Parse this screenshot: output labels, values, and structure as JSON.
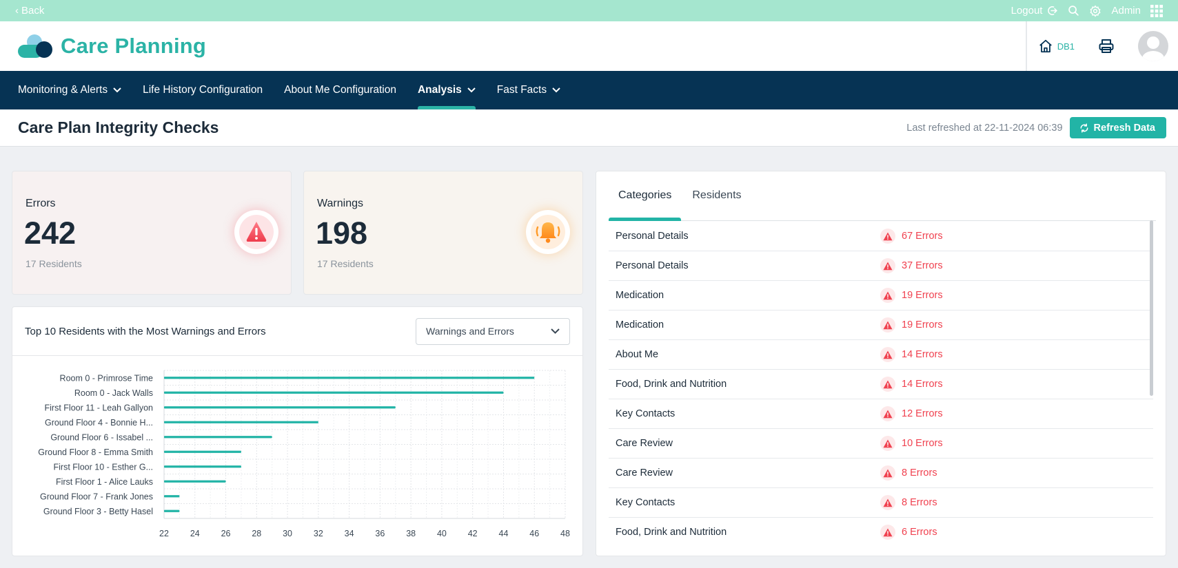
{
  "topbar": {
    "back": "Back",
    "logout": "Logout",
    "admin": "Admin"
  },
  "header": {
    "brand": "Care Planning",
    "db_label": "DB1"
  },
  "nav": {
    "items": [
      {
        "label": "Monitoring & Alerts",
        "dropdown": true
      },
      {
        "label": "Life History Configuration",
        "dropdown": false
      },
      {
        "label": "About Me Configuration",
        "dropdown": false
      },
      {
        "label": "Analysis",
        "dropdown": true,
        "active": true
      },
      {
        "label": "Fast Facts",
        "dropdown": true
      }
    ]
  },
  "page": {
    "title": "Care Plan Integrity Checks",
    "last_refreshed": "Last refreshed at 22-11-2024 06:39",
    "refresh_button": "Refresh Data"
  },
  "stats": {
    "errors": {
      "label": "Errors",
      "value": "242",
      "sub": "17 Residents"
    },
    "warnings": {
      "label": "Warnings",
      "value": "198",
      "sub": "17 Residents"
    }
  },
  "chart_panel": {
    "title": "Top 10 Residents with the Most Warnings and Errors",
    "filter_selected": "Warnings and Errors"
  },
  "chart_data": {
    "type": "bar",
    "orientation": "horizontal",
    "categories": [
      "Room 0 - Primrose Time",
      "Room 0 - Jack Walls",
      "First Floor 11 - Leah Gallyon",
      "Ground Floor 4 - Bonnie H...",
      "Ground Floor 6 - Issabel ...",
      "Ground Floor 8 - Emma Smith",
      "First Floor 10 - Esther G...",
      "First Floor 1 - Alice Lauks",
      "Ground Floor 7 - Frank Jones",
      "Ground Floor 3 - Betty Hasel"
    ],
    "values": [
      46,
      44,
      37,
      32,
      29,
      27,
      27,
      26,
      23,
      23
    ],
    "xlim": [
      22,
      48
    ],
    "xticks": [
      22,
      24,
      26,
      28,
      30,
      32,
      34,
      36,
      38,
      40,
      42,
      44,
      46,
      48
    ],
    "grid": true,
    "color": "#22b4a6"
  },
  "categories_panel": {
    "tabs": [
      {
        "label": "Categories",
        "active": true
      },
      {
        "label": "Residents",
        "active": false
      }
    ],
    "rows": [
      {
        "name": "Personal Details",
        "count": "67 Errors"
      },
      {
        "name": "Personal Details",
        "count": "37 Errors"
      },
      {
        "name": "Medication",
        "count": "19 Errors"
      },
      {
        "name": "Medication",
        "count": "19 Errors"
      },
      {
        "name": "About Me",
        "count": "14 Errors"
      },
      {
        "name": "Food, Drink and Nutrition",
        "count": "14 Errors"
      },
      {
        "name": "Key Contacts",
        "count": "12 Errors"
      },
      {
        "name": "Care Review",
        "count": "10 Errors"
      },
      {
        "name": "Care Review",
        "count": "8 Errors"
      },
      {
        "name": "Key Contacts",
        "count": "8 Errors"
      },
      {
        "name": "Food, Drink and Nutrition",
        "count": "6 Errors"
      }
    ]
  },
  "colors": {
    "accent": "#22b4a6",
    "nav": "#063354",
    "error": "#f0414f",
    "warning": "#ff9b28",
    "topbar": "#a5e6cf"
  }
}
